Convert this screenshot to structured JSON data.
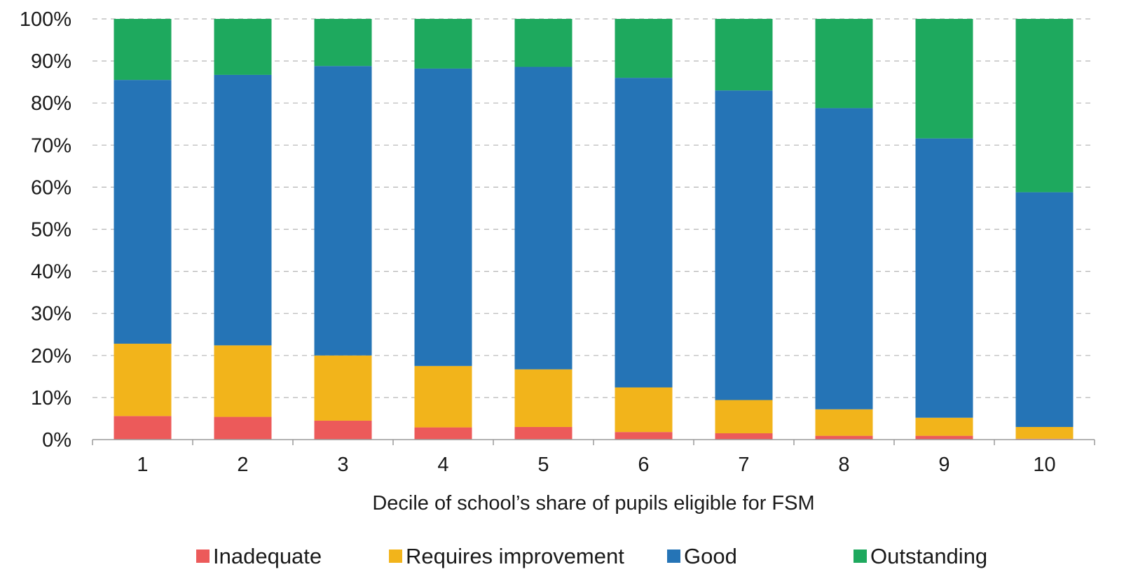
{
  "chart_data": {
    "type": "bar",
    "stacked": true,
    "categories": [
      "1",
      "2",
      "3",
      "4",
      "5",
      "6",
      "7",
      "8",
      "9",
      "10"
    ],
    "xlabel": "Decile of school’s share of pupils eligible for FSM",
    "ylabel": "",
    "ylim": [
      0,
      100
    ],
    "y_ticks": [
      "0%",
      "10%",
      "20%",
      "30%",
      "40%",
      "50%",
      "60%",
      "70%",
      "80%",
      "90%",
      "100%"
    ],
    "grid": "horizontal-dashed",
    "legend_position": "bottom",
    "series": [
      {
        "name": "Inadequate",
        "color": "#ec5a5a",
        "values": [
          5.6,
          5.4,
          4.5,
          2.9,
          3.0,
          1.8,
          1.5,
          0.9,
          0.9,
          0.2
        ]
      },
      {
        "name": "Requires improvement",
        "color": "#f2b41b",
        "values": [
          17.2,
          17.0,
          15.5,
          14.6,
          13.7,
          10.6,
          7.9,
          6.3,
          4.3,
          2.8
        ]
      },
      {
        "name": "Good",
        "color": "#2574b6",
        "values": [
          62.7,
          64.3,
          68.8,
          70.7,
          71.9,
          73.6,
          73.6,
          71.6,
          66.4,
          55.8
        ]
      },
      {
        "name": "Outstanding",
        "color": "#1ea95e",
        "values": [
          14.5,
          13.3,
          11.2,
          11.8,
          11.4,
          14.0,
          17.0,
          21.2,
          28.4,
          41.2
        ]
      }
    ]
  }
}
